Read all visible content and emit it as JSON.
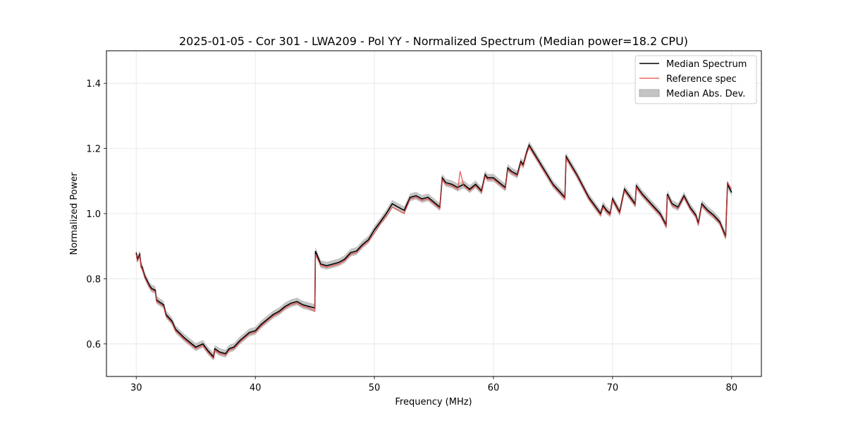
{
  "chart_data": {
    "type": "line",
    "title": "2025-01-05 - Cor 301 - LWA209 - Pol YY - Normalized Spectrum (Median power=18.2 CPU)",
    "xlabel": "Frequency (MHz)",
    "ylabel": "Normalized Power",
    "xlim": [
      27.5,
      82.5
    ],
    "ylim": [
      0.5,
      1.5
    ],
    "xticks": [
      30,
      40,
      50,
      60,
      70,
      80
    ],
    "yticks": [
      0.6,
      0.8,
      1.0,
      1.2,
      1.4
    ],
    "ytick_labels": [
      "0.6",
      "0.8",
      "1.0",
      "1.2",
      "1.4"
    ],
    "grid": true,
    "legend_position": "top-right",
    "legend": [
      "Median Spectrum",
      "Reference spec",
      "Median Abs. Dev."
    ],
    "colors": {
      "median": "#000000",
      "reference": "#e8413e",
      "mad": "#b0b0b0",
      "overlap": "#8b0000"
    },
    "series": [
      {
        "name": "Median Spectrum",
        "x": [
          30.0,
          30.1,
          30.3,
          30.4,
          30.5,
          30.7,
          30.9,
          31.1,
          31.3,
          31.6,
          31.7,
          32.3,
          32.5,
          33.0,
          33.3,
          34.0,
          34.5,
          35.0,
          35.6,
          36.0,
          36.5,
          36.6,
          37.0,
          37.5,
          37.8,
          38.2,
          38.7,
          39.5,
          40.0,
          40.5,
          41.0,
          41.5,
          42.0,
          42.5,
          43.0,
          43.5,
          44.0,
          44.5,
          45.0,
          45.05,
          45.5,
          46.0,
          46.5,
          47.0,
          47.5,
          48.0,
          48.5,
          49.0,
          49.5,
          50.0,
          50.5,
          51.0,
          51.5,
          52.0,
          52.5,
          53.0,
          53.5,
          54.0,
          54.5,
          55.0,
          55.5,
          55.7,
          56.0,
          56.5,
          57.0,
          57.5,
          58.0,
          58.5,
          59.0,
          59.3,
          59.5,
          60.0,
          60.5,
          61.0,
          61.2,
          61.5,
          62.0,
          62.3,
          62.5,
          62.8,
          63.0,
          63.5,
          64.0,
          64.5,
          65.0,
          65.5,
          66.0,
          66.1,
          67.0,
          68.0,
          69.0,
          69.2,
          69.5,
          69.8,
          70.0,
          70.6,
          71.0,
          71.5,
          71.9,
          72.0,
          72.5,
          73.0,
          73.5,
          74.0,
          74.5,
          74.6,
          75.0,
          75.5,
          76.0,
          76.5,
          77.0,
          77.2,
          77.5,
          78.0,
          78.5,
          79.0,
          79.5,
          79.65,
          80.0
        ],
        "values": [
          0.88,
          0.86,
          0.875,
          0.84,
          0.835,
          0.81,
          0.795,
          0.78,
          0.77,
          0.765,
          0.735,
          0.72,
          0.69,
          0.67,
          0.645,
          0.62,
          0.605,
          0.59,
          0.6,
          0.58,
          0.56,
          0.585,
          0.575,
          0.57,
          0.585,
          0.59,
          0.61,
          0.635,
          0.64,
          0.66,
          0.675,
          0.69,
          0.7,
          0.715,
          0.725,
          0.73,
          0.72,
          0.715,
          0.71,
          0.885,
          0.845,
          0.84,
          0.845,
          0.85,
          0.86,
          0.88,
          0.885,
          0.905,
          0.92,
          0.95,
          0.975,
          1.0,
          1.03,
          1.02,
          1.01,
          1.05,
          1.055,
          1.045,
          1.05,
          1.035,
          1.02,
          1.11,
          1.095,
          1.09,
          1.08,
          1.09,
          1.075,
          1.09,
          1.07,
          1.12,
          1.11,
          1.11,
          1.095,
          1.08,
          1.14,
          1.13,
          1.12,
          1.16,
          1.15,
          1.19,
          1.21,
          1.18,
          1.15,
          1.12,
          1.09,
          1.07,
          1.05,
          1.175,
          1.12,
          1.05,
          1.0,
          1.025,
          1.01,
          1.0,
          1.045,
          1.005,
          1.075,
          1.05,
          1.03,
          1.085,
          1.06,
          1.04,
          1.02,
          1.0,
          0.965,
          1.06,
          1.03,
          1.02,
          1.055,
          1.02,
          0.995,
          0.97,
          1.03,
          1.01,
          0.995,
          0.975,
          0.93,
          1.09,
          1.065
        ]
      },
      {
        "name": "Reference spec",
        "x": [
          30.0,
          30.1,
          30.3,
          30.4,
          30.5,
          30.7,
          30.9,
          31.1,
          31.3,
          31.6,
          31.7,
          32.3,
          32.5,
          33.0,
          33.3,
          34.0,
          34.5,
          35.0,
          35.6,
          36.0,
          36.5,
          36.6,
          37.0,
          37.5,
          37.8,
          38.2,
          38.7,
          39.5,
          40.0,
          40.5,
          41.0,
          41.5,
          42.0,
          42.5,
          43.0,
          43.5,
          44.0,
          44.5,
          45.0,
          45.05,
          45.5,
          46.0,
          46.5,
          47.0,
          47.5,
          48.0,
          48.5,
          49.0,
          49.5,
          50.0,
          50.5,
          51.0,
          51.5,
          52.0,
          52.5,
          53.0,
          53.5,
          54.0,
          54.5,
          55.0,
          55.5,
          55.7,
          56.0,
          56.5,
          57.0,
          57.2,
          57.5,
          58.0,
          58.5,
          59.0,
          59.3,
          59.5,
          60.0,
          60.5,
          61.0,
          61.2,
          61.5,
          62.0,
          62.3,
          62.5,
          62.8,
          63.0,
          63.5,
          64.0,
          64.5,
          65.0,
          65.5,
          66.0,
          66.1,
          67.0,
          68.0,
          69.0,
          69.2,
          69.5,
          69.8,
          70.0,
          70.6,
          71.0,
          71.5,
          71.9,
          72.0,
          72.5,
          73.0,
          73.5,
          74.0,
          74.5,
          74.6,
          75.0,
          75.5,
          76.0,
          76.5,
          77.0,
          77.2,
          77.5,
          78.0,
          78.5,
          79.0,
          79.5,
          79.65,
          80.0
        ],
        "values": [
          0.875,
          0.855,
          0.87,
          0.835,
          0.83,
          0.805,
          0.79,
          0.775,
          0.765,
          0.76,
          0.73,
          0.715,
          0.685,
          0.665,
          0.64,
          0.615,
          0.6,
          0.585,
          0.595,
          0.575,
          0.555,
          0.58,
          0.57,
          0.565,
          0.58,
          0.585,
          0.605,
          0.63,
          0.635,
          0.655,
          0.67,
          0.685,
          0.695,
          0.71,
          0.72,
          0.725,
          0.715,
          0.71,
          0.7,
          0.875,
          0.84,
          0.835,
          0.84,
          0.845,
          0.855,
          0.875,
          0.88,
          0.9,
          0.915,
          0.94,
          0.97,
          0.99,
          1.02,
          1.01,
          1.0,
          1.045,
          1.05,
          1.04,
          1.045,
          1.03,
          1.015,
          1.105,
          1.09,
          1.085,
          1.075,
          1.13,
          1.085,
          1.07,
          1.085,
          1.065,
          1.115,
          1.105,
          1.105,
          1.09,
          1.075,
          1.135,
          1.125,
          1.115,
          1.155,
          1.145,
          1.185,
          1.205,
          1.175,
          1.145,
          1.115,
          1.085,
          1.065,
          1.045,
          1.17,
          1.115,
          1.045,
          0.995,
          1.02,
          1.005,
          0.995,
          1.04,
          1.0,
          1.07,
          1.045,
          1.025,
          1.08,
          1.055,
          1.035,
          1.015,
          0.995,
          0.96,
          1.055,
          1.025,
          1.015,
          1.05,
          1.015,
          0.99,
          0.965,
          1.025,
          1.005,
          0.99,
          0.97,
          0.925,
          1.095,
          1.075
        ]
      }
    ],
    "mad_width": 0.012
  }
}
